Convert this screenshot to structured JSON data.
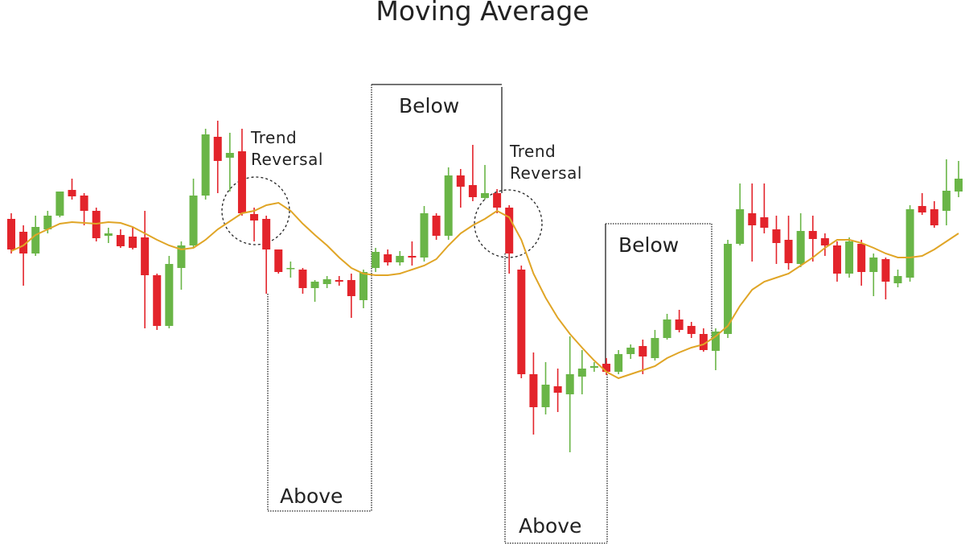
{
  "chart_data": {
    "type": "candlestick",
    "title": "Moving Average",
    "up_color": "#6ab547",
    "down_color": "#e3242b",
    "ylim": [
      24,
      700
    ],
    "open": [
      428,
      412,
      385,
      415,
      432,
      464,
      457,
      438,
      407,
      408,
      406,
      405,
      358,
      295,
      367,
      395,
      457,
      530,
      504,
      512,
      434,
      428,
      390,
      366,
      365,
      342,
      347,
      352,
      352,
      327,
      367,
      384,
      374,
      382,
      380,
      432,
      407,
      482,
      470,
      454,
      460,
      442,
      365,
      235,
      194,
      220,
      210,
      232,
      243,
      248,
      238,
      260,
      270,
      255,
      280,
      303,
      295,
      285,
      264,
      285,
      397,
      435,
      430,
      415,
      402,
      372,
      413,
      404,
      395,
      360,
      397,
      362,
      378,
      348,
      355,
      444,
      440,
      438,
      462
    ],
    "high": [
      435,
      420,
      432,
      438,
      462,
      478,
      460,
      442,
      417,
      415,
      418,
      438,
      360,
      382,
      400,
      478,
      540,
      550,
      535,
      540,
      442,
      432,
      390,
      375,
      367,
      352,
      357,
      357,
      360,
      365,
      392,
      390,
      388,
      400,
      444,
      435,
      492,
      490,
      520,
      495,
      465,
      445,
      370,
      262,
      250,
      242,
      282,
      265,
      250,
      255,
      265,
      272,
      278,
      290,
      310,
      315,
      300,
      292,
      292,
      402,
      472,
      472,
      472,
      432,
      432,
      435,
      432,
      410,
      400,
      405,
      402,
      385,
      380,
      365,
      445,
      460,
      450,
      502,
      500
    ],
    "low": [
      385,
      345,
      382,
      410,
      430,
      452,
      420,
      400,
      398,
      392,
      390,
      292,
      290,
      292,
      340,
      392,
      452,
      460,
      462,
      432,
      400,
      335,
      360,
      355,
      335,
      325,
      342,
      345,
      305,
      317,
      362,
      370,
      370,
      370,
      375,
      402,
      402,
      442,
      450,
      452,
      435,
      360,
      230,
      160,
      185,
      188,
      138,
      210,
      238,
      234,
      235,
      254,
      235,
      252,
      278,
      287,
      280,
      263,
      240,
      280,
      395,
      375,
      410,
      372,
      365,
      368,
      375,
      382,
      350,
      355,
      345,
      332,
      328,
      343,
      350,
      433,
      417,
      420,
      455
    ],
    "close": [
      390,
      385,
      418,
      432,
      462,
      456,
      438,
      404,
      410,
      394,
      392,
      358,
      295,
      372,
      395,
      457,
      533,
      500,
      510,
      435,
      426,
      390,
      362,
      367,
      342,
      350,
      353,
      350,
      332,
      362,
      387,
      374,
      382,
      380,
      435,
      407,
      482,
      468,
      455,
      460,
      442,
      385,
      235,
      194,
      222,
      212,
      235,
      242,
      245,
      238,
      260,
      268,
      257,
      280,
      303,
      290,
      285,
      265,
      288,
      397,
      440,
      420,
      417,
      398,
      373,
      413,
      403,
      395,
      360,
      400,
      362,
      380,
      350,
      357,
      440,
      436,
      420,
      463,
      478
    ],
    "moving_average": {
      "color": "#e0a526",
      "values": [
        388,
        395,
        408,
        415,
        422,
        424,
        423,
        422,
        424,
        423,
        418,
        410,
        402,
        395,
        390,
        392,
        402,
        415,
        425,
        435,
        438,
        445,
        448,
        438,
        422,
        408,
        395,
        380,
        367,
        360,
        358,
        358,
        360,
        365,
        370,
        378,
        395,
        410,
        420,
        428,
        438,
        430,
        402,
        360,
        330,
        305,
        285,
        268,
        252,
        238,
        230,
        235,
        240,
        245,
        255,
        262,
        268,
        272,
        282,
        295,
        320,
        340,
        350,
        355,
        360,
        370,
        380,
        392,
        402,
        402,
        398,
        392,
        385,
        380,
        380,
        382,
        390,
        400,
        410
      ]
    },
    "annotations": [
      "Trend Reversal",
      "Trend Reversal",
      "Below",
      "Above",
      "Above",
      "Below"
    ]
  }
}
